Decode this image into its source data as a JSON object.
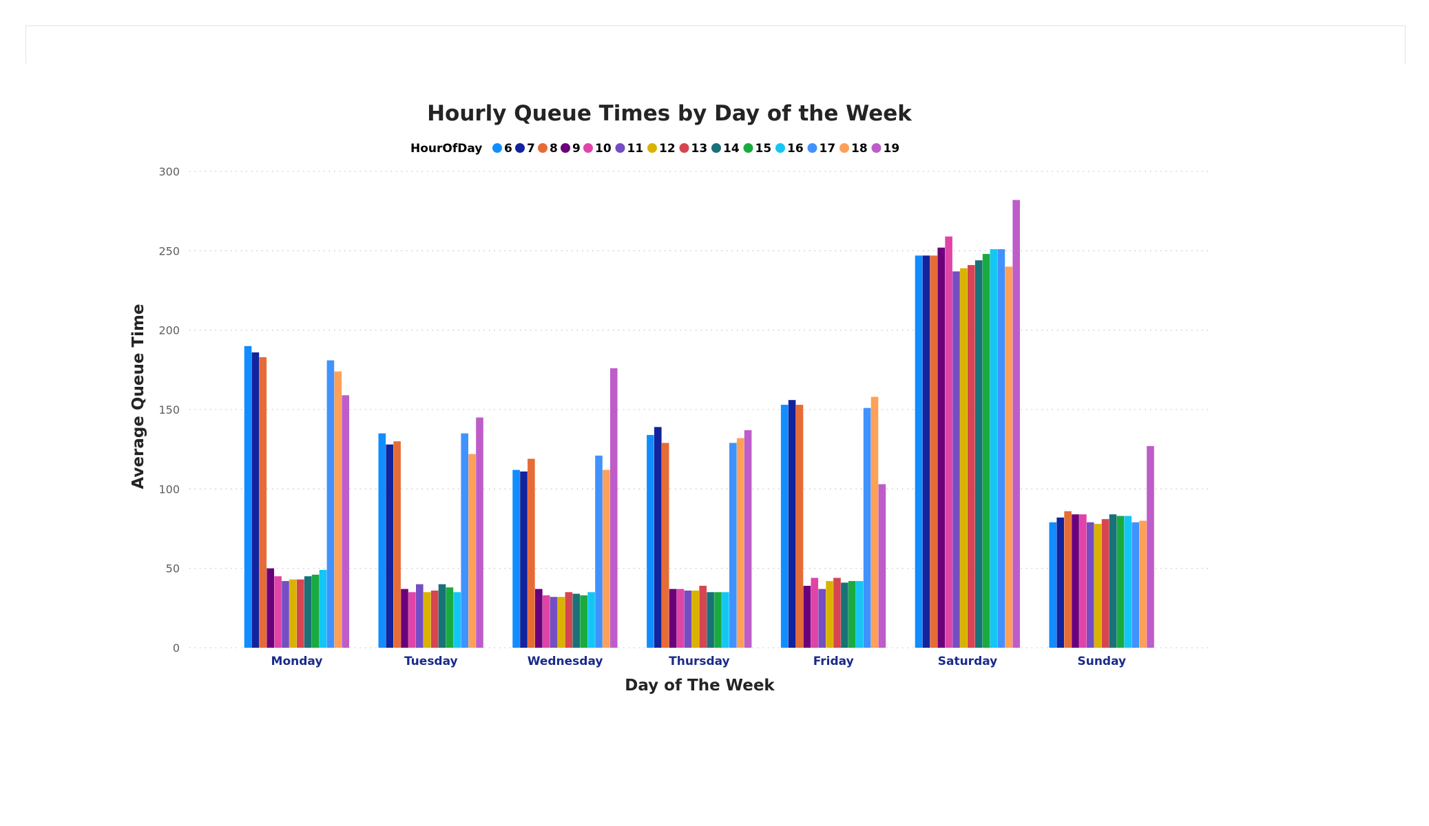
{
  "chart_data": {
    "type": "bar",
    "title": "Hourly Queue Times by Day of the Week",
    "xlabel": "Day of The Week",
    "ylabel": "Average Queue Time",
    "ylim": [
      0,
      300
    ],
    "yticks": [
      "0",
      "50",
      "100",
      "150",
      "200",
      "250",
      "300"
    ],
    "grid": true,
    "legend": {
      "title": "HourOfDay",
      "position": "top-center"
    },
    "categories": [
      "Monday",
      "Tuesday",
      "Wednesday",
      "Thursday",
      "Friday",
      "Saturday",
      "Sunday"
    ],
    "series": [
      {
        "name": "6",
        "color": "#118DFF",
        "values": [
          190,
          135,
          112,
          134,
          153,
          247,
          79
        ]
      },
      {
        "name": "7",
        "color": "#12239E",
        "values": [
          186,
          128,
          111,
          139,
          156,
          247,
          82
        ]
      },
      {
        "name": "8",
        "color": "#E66C37",
        "values": [
          183,
          130,
          119,
          129,
          153,
          247,
          86
        ]
      },
      {
        "name": "9",
        "color": "#6B007B",
        "values": [
          50,
          37,
          37,
          37,
          39,
          252,
          84
        ]
      },
      {
        "name": "10",
        "color": "#E044A7",
        "values": [
          45,
          35,
          33,
          37,
          44,
          259,
          84
        ]
      },
      {
        "name": "11",
        "color": "#744EC2",
        "values": [
          42,
          40,
          32,
          36,
          37,
          237,
          79
        ]
      },
      {
        "name": "12",
        "color": "#D9B300",
        "values": [
          43,
          35,
          32,
          36,
          42,
          239,
          78
        ]
      },
      {
        "name": "13",
        "color": "#D64550",
        "values": [
          43,
          36,
          35,
          39,
          44,
          241,
          81
        ]
      },
      {
        "name": "14",
        "color": "#197278",
        "values": [
          45,
          40,
          34,
          35,
          41,
          244,
          84
        ]
      },
      {
        "name": "15",
        "color": "#1AAB40",
        "values": [
          46,
          38,
          33,
          35,
          42,
          248,
          83
        ]
      },
      {
        "name": "16",
        "color": "#15C6F4",
        "values": [
          49,
          35,
          35,
          35,
          42,
          251,
          83
        ]
      },
      {
        "name": "17",
        "color": "#4092FF",
        "values": [
          181,
          135,
          121,
          129,
          151,
          251,
          79
        ]
      },
      {
        "name": "18",
        "color": "#FFA058",
        "values": [
          174,
          122,
          112,
          132,
          158,
          240,
          80
        ]
      },
      {
        "name": "19",
        "color": "#BE5DC9",
        "values": [
          159,
          145,
          176,
          137,
          103,
          282,
          127
        ]
      }
    ]
  }
}
